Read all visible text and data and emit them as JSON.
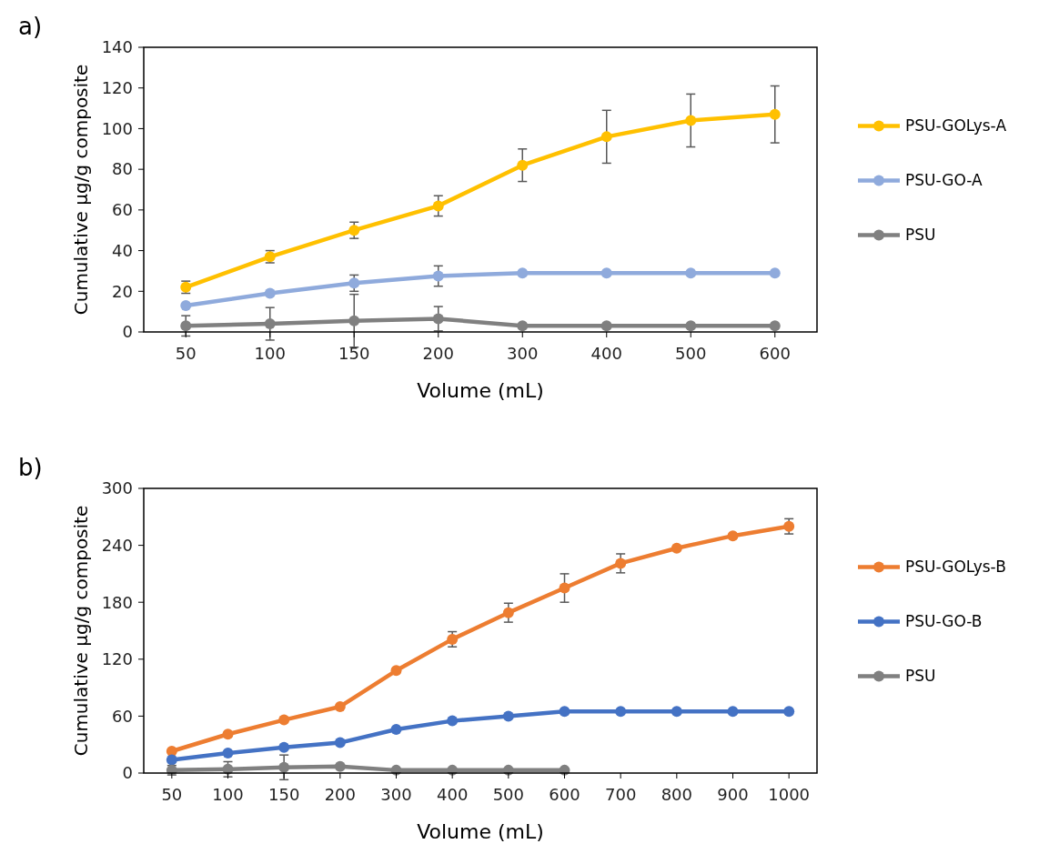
{
  "chart_data": [
    {
      "type": "line",
      "annotations": [
        "a)"
      ],
      "xlabel": "Volume (mL)",
      "ylabel": "Cumulative μg/g composite",
      "categories": [
        "50",
        "100",
        "150",
        "200",
        "300",
        "400",
        "500",
        "600"
      ],
      "ylim": [
        0,
        140
      ],
      "yticks": [
        0,
        20,
        40,
        60,
        80,
        100,
        120,
        140
      ],
      "grid": false,
      "legend": "right",
      "marker": "circle",
      "series": [
        {
          "name": "PSU-GOLys-A",
          "color": "#ffc000",
          "values": [
            22,
            37,
            50,
            62,
            82,
            96,
            104,
            107
          ],
          "errors": [
            3,
            3,
            4,
            5,
            8,
            13,
            13,
            14
          ]
        },
        {
          "name": "PSU-GO-A",
          "color": "#8faadc",
          "values": [
            13,
            19,
            24,
            27.5,
            29,
            29,
            29,
            29
          ],
          "errors": [
            null,
            null,
            4,
            5,
            null,
            null,
            null,
            null
          ]
        },
        {
          "name": "PSU",
          "color": "#808080",
          "values": [
            3,
            4,
            5.5,
            6.5,
            3,
            3,
            3,
            3
          ],
          "errors": [
            5,
            8,
            13,
            6,
            null,
            null,
            null,
            null
          ]
        }
      ]
    },
    {
      "type": "line",
      "annotations": [
        "b)"
      ],
      "xlabel": "Volume (mL)",
      "ylabel": "Cumulative μg/g composite",
      "categories": [
        "50",
        "100",
        "150",
        "200",
        "300",
        "400",
        "500",
        "600",
        "700",
        "800",
        "900",
        "1000"
      ],
      "ylim": [
        0,
        300
      ],
      "yticks": [
        0,
        60,
        120,
        180,
        240,
        300
      ],
      "grid": false,
      "legend": "right",
      "marker": "circle",
      "series": [
        {
          "name": "PSU-GOLys-B",
          "color": "#ed7d31",
          "values": [
            23,
            41,
            56,
            70,
            108,
            141,
            169,
            195,
            221,
            237,
            250,
            260
          ],
          "errors": [
            null,
            null,
            null,
            null,
            null,
            8,
            10,
            15,
            10,
            null,
            null,
            8
          ]
        },
        {
          "name": "PSU-GO-B",
          "color": "#4472c4",
          "values": [
            14,
            21,
            27,
            32,
            46,
            55,
            60,
            65,
            65,
            65,
            65,
            65
          ]
        },
        {
          "name": "PSU",
          "color": "#808080",
          "values": [
            3,
            4,
            6,
            7,
            3,
            3,
            3,
            3,
            null,
            null,
            null,
            null
          ],
          "errors": [
            5,
            8,
            13,
            null,
            null,
            null,
            null,
            null,
            null,
            null,
            null,
            null
          ]
        }
      ]
    }
  ]
}
